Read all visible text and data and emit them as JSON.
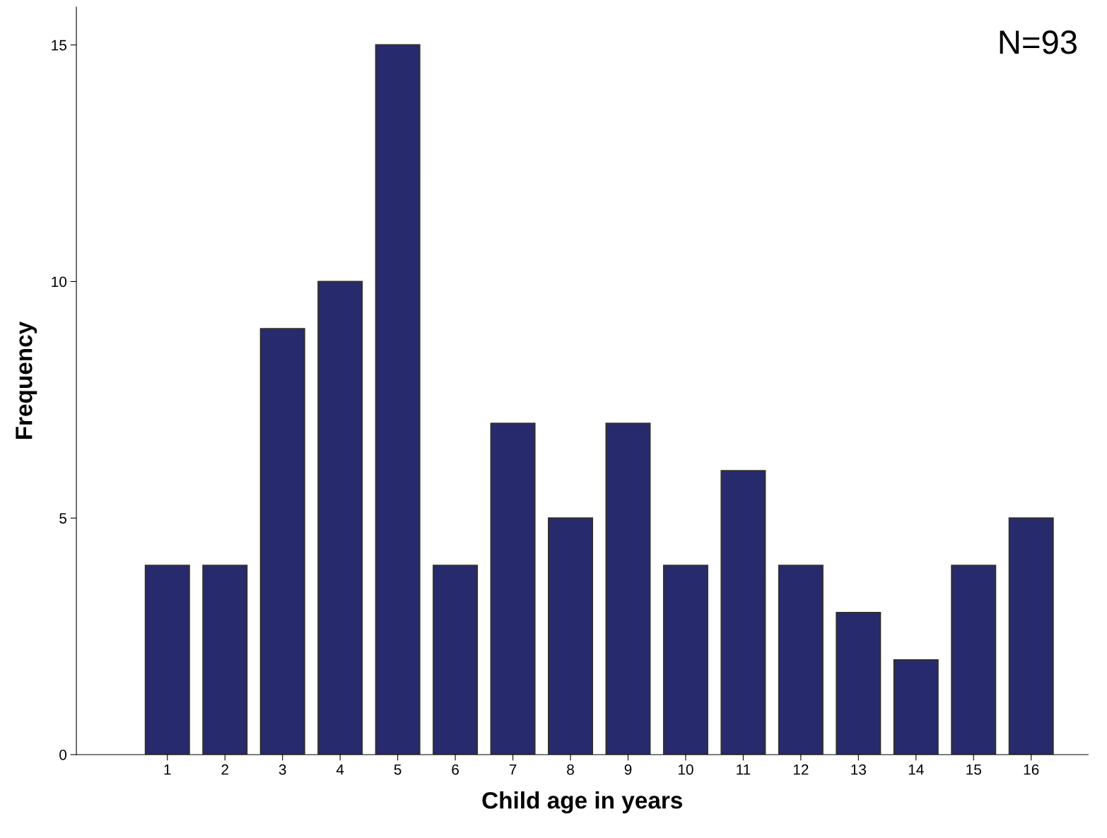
{
  "chart_data": {
    "type": "bar",
    "xlabel": "Child age in years",
    "ylabel": "Frequency",
    "categories": [
      "1",
      "2",
      "3",
      "4",
      "5",
      "6",
      "7",
      "8",
      "9",
      "10",
      "11",
      "12",
      "13",
      "14",
      "15",
      "16"
    ],
    "values": [
      4,
      4,
      9,
      10,
      15,
      4,
      7,
      5,
      7,
      4,
      6,
      4,
      3,
      2,
      4,
      5
    ],
    "color": "#282a6e",
    "ylim": [
      0,
      15.8
    ],
    "yticks": [
      0,
      5,
      10,
      15
    ],
    "annotations": [
      "N=93"
    ],
    "grid": false,
    "legend": false
  }
}
